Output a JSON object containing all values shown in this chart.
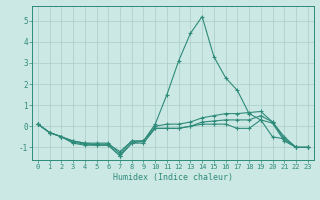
{
  "xlabel": "Humidex (Indice chaleur)",
  "x": [
    0,
    1,
    2,
    3,
    4,
    5,
    6,
    7,
    8,
    9,
    10,
    11,
    12,
    13,
    14,
    15,
    16,
    17,
    18,
    19,
    20,
    21,
    22,
    23
  ],
  "line1": [
    0.1,
    -0.3,
    -0.5,
    -0.7,
    -0.8,
    -0.8,
    -0.8,
    -1.3,
    -0.7,
    -0.7,
    0.0,
    0.1,
    0.1,
    0.2,
    0.4,
    0.5,
    0.6,
    0.6,
    0.65,
    0.7,
    0.2,
    -0.6,
    -1.0,
    -1.0
  ],
  "line2": [
    0.1,
    -0.3,
    -0.5,
    -0.8,
    -0.9,
    -0.9,
    -0.9,
    -1.4,
    -0.8,
    -0.8,
    -0.1,
    -0.1,
    -0.1,
    0.0,
    0.1,
    0.1,
    0.1,
    -0.1,
    -0.1,
    0.3,
    0.15,
    -0.7,
    -1.0,
    -1.0
  ],
  "line3": [
    0.1,
    -0.3,
    -0.5,
    -0.75,
    -0.85,
    -0.85,
    -0.85,
    -1.2,
    -0.7,
    -0.7,
    -0.1,
    -0.1,
    -0.1,
    0.0,
    0.2,
    0.25,
    0.3,
    0.3,
    0.3,
    0.5,
    0.2,
    -0.5,
    -1.0,
    -1.0
  ],
  "line4": [
    0.1,
    -0.3,
    -0.5,
    -0.7,
    -0.8,
    -0.9,
    -0.9,
    -1.4,
    -0.8,
    -0.7,
    0.1,
    1.5,
    3.1,
    4.4,
    5.2,
    3.3,
    2.3,
    1.7,
    0.6,
    0.3,
    -0.5,
    -0.6,
    -1.0,
    -1.0
  ],
  "color": "#2e8b7a",
  "bg_color": "#cce8e4",
  "grid_color": "#aaccc8",
  "ylim": [
    -1.6,
    5.7
  ],
  "yticks": [
    -1,
    0,
    1,
    2,
    3,
    4,
    5
  ],
  "xlim": [
    -0.5,
    23.5
  ],
  "figsize": [
    3.2,
    2.0
  ],
  "dpi": 100
}
